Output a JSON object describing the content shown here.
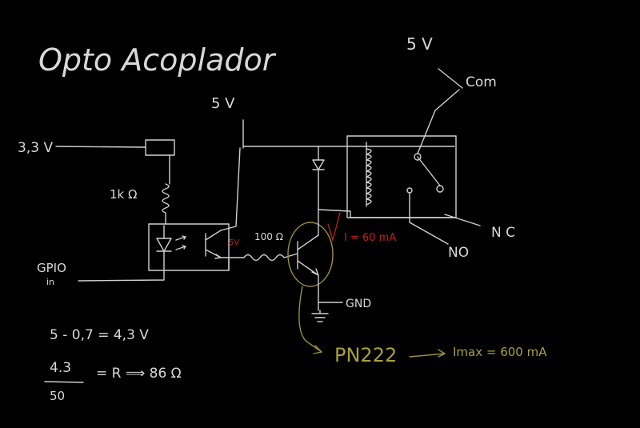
{
  "title": "Opto Acoplador",
  "labels": {
    "v33": "3,3 V",
    "v5_top": "5 V",
    "v5_right": "5 V",
    "com": "Com",
    "r1k": "1k Ω",
    "gpio": "GPIO",
    "gpio_sub": "in",
    "pin5v": "5V",
    "r100": "100 Ω",
    "current": "I = 60 mA",
    "gnd": "GND",
    "nc": "N C",
    "no": "NO",
    "transistor": "PN222",
    "imax": "Imax = 600 mA"
  },
  "equations": {
    "line1": "5 - 0,7 = 4,3 V",
    "num": "4.3",
    "den": "50",
    "result": "= R ⟹ 86 Ω"
  },
  "colors": {
    "background": "#000000",
    "ink": "#d8d8d8",
    "red_ink": "#c02020",
    "yellow_ink": "#a8a040"
  }
}
